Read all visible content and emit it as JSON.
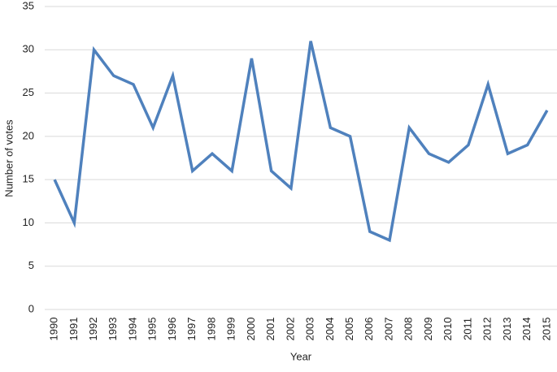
{
  "chart_data": {
    "type": "line",
    "x_label": "Year",
    "y_label": "Number of votes",
    "categories": [
      "1990",
      "1991",
      "1992",
      "1993",
      "1994",
      "1995",
      "1996",
      "1997",
      "1998",
      "1999",
      "2000",
      "2001",
      "2002",
      "2003",
      "2004",
      "2005",
      "2006",
      "2007",
      "2008",
      "2009",
      "2010",
      "2011",
      "2012",
      "2013",
      "2014",
      "2015"
    ],
    "values": [
      15,
      10,
      30,
      27,
      26,
      21,
      27,
      16,
      18,
      16,
      29,
      16,
      14,
      31,
      21,
      20,
      9,
      8,
      21,
      18,
      17,
      19,
      26,
      18,
      19,
      23
    ],
    "color": "#4f81bd",
    "ylim": [
      0,
      35
    ],
    "yticks": [
      0,
      5,
      10,
      15,
      20,
      25,
      30,
      35
    ],
    "grid": true
  }
}
